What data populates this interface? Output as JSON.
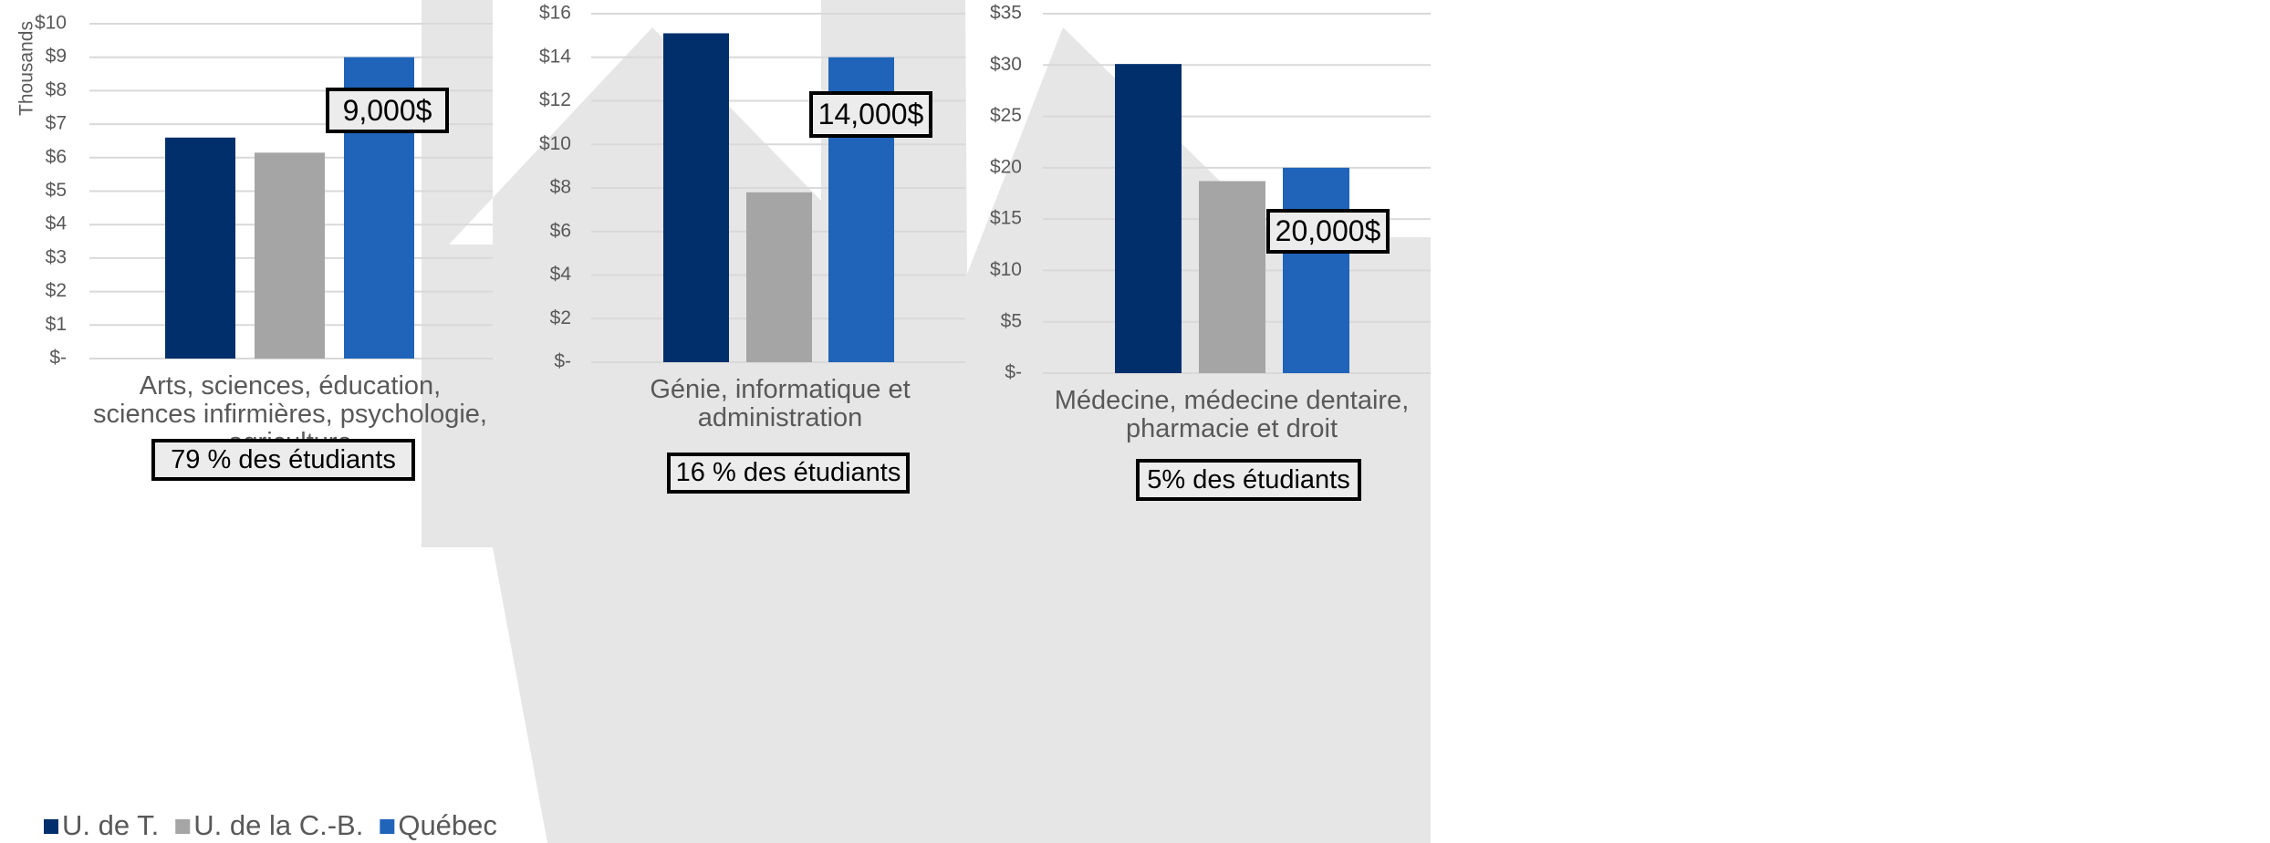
{
  "chart_data": [
    {
      "type": "bar",
      "y_label": "Thousands",
      "categories": [
        "Arts, sciences, éducation, sciences infirmières, psychologie, agriculture"
      ],
      "series": [
        {
          "name": "U. de T.",
          "color": "#002f6c",
          "values": [
            6.6
          ]
        },
        {
          "name": "U. de la C.-B.",
          "color": "#a5a5a5",
          "values": [
            6.15
          ]
        },
        {
          "name": "Québec",
          "color": "#1f64b9",
          "values": [
            9
          ],
          "value_labels": [
            "9,000$"
          ]
        }
      ],
      "ylim": [
        0,
        10
      ],
      "yticks": [
        {
          "value": 0,
          "label": "$-"
        },
        {
          "value": 1,
          "label": "$1"
        },
        {
          "value": 2,
          "label": "$2"
        },
        {
          "value": 3,
          "label": "$3"
        },
        {
          "value": 4,
          "label": "$4"
        },
        {
          "value": 5,
          "label": "$5"
        },
        {
          "value": 6,
          "label": "$6"
        },
        {
          "value": 7,
          "label": "$7"
        },
        {
          "value": 8,
          "label": "$8"
        },
        {
          "value": 9,
          "label": "$9"
        },
        {
          "value": 10,
          "label": "$10"
        }
      ],
      "grid": true,
      "note": "79 % des étudiants"
    },
    {
      "type": "bar",
      "categories": [
        "Génie, informatique et administration"
      ],
      "series": [
        {
          "color": "#002f6c",
          "values": [
            15.1
          ]
        },
        {
          "color": "#a5a5a5",
          "values": [
            7.8
          ]
        },
        {
          "color": "#1f64b9",
          "values": [
            14
          ],
          "value_labels": [
            "14,000$"
          ]
        }
      ],
      "ylim": [
        0,
        16
      ],
      "yticks": [
        {
          "value": 0,
          "label": "$-"
        },
        {
          "value": 2,
          "label": "$2"
        },
        {
          "value": 4,
          "label": "$4"
        },
        {
          "value": 6,
          "label": "$6"
        },
        {
          "value": 8,
          "label": "$8"
        },
        {
          "value": 10,
          "label": "$10"
        },
        {
          "value": 12,
          "label": "$12"
        },
        {
          "value": 14,
          "label": "$14"
        },
        {
          "value": 16,
          "label": "$16"
        }
      ],
      "grid": true,
      "note": "16 % des étudiants"
    },
    {
      "type": "bar",
      "categories": [
        "Médecine, médecine dentaire, pharmacie et droit"
      ],
      "series": [
        {
          "color": "#002f6c",
          "values": [
            30.1
          ]
        },
        {
          "color": "#a5a5a5",
          "values": [
            18.7
          ]
        },
        {
          "color": "#1f64b9",
          "values": [
            20
          ],
          "value_labels": [
            "20,000$"
          ]
        }
      ],
      "ylim": [
        0,
        35
      ],
      "yticks": [
        {
          "value": 0,
          "label": "$-"
        },
        {
          "value": 5,
          "label": "$5"
        },
        {
          "value": 10,
          "label": "$10"
        },
        {
          "value": 15,
          "label": "$15"
        },
        {
          "value": 20,
          "label": "$20"
        },
        {
          "value": 25,
          "label": "$25"
        },
        {
          "value": 30,
          "label": "$30"
        },
        {
          "value": 35,
          "label": "$35"
        }
      ],
      "grid": true,
      "note": "5% des étudiants"
    }
  ]
}
